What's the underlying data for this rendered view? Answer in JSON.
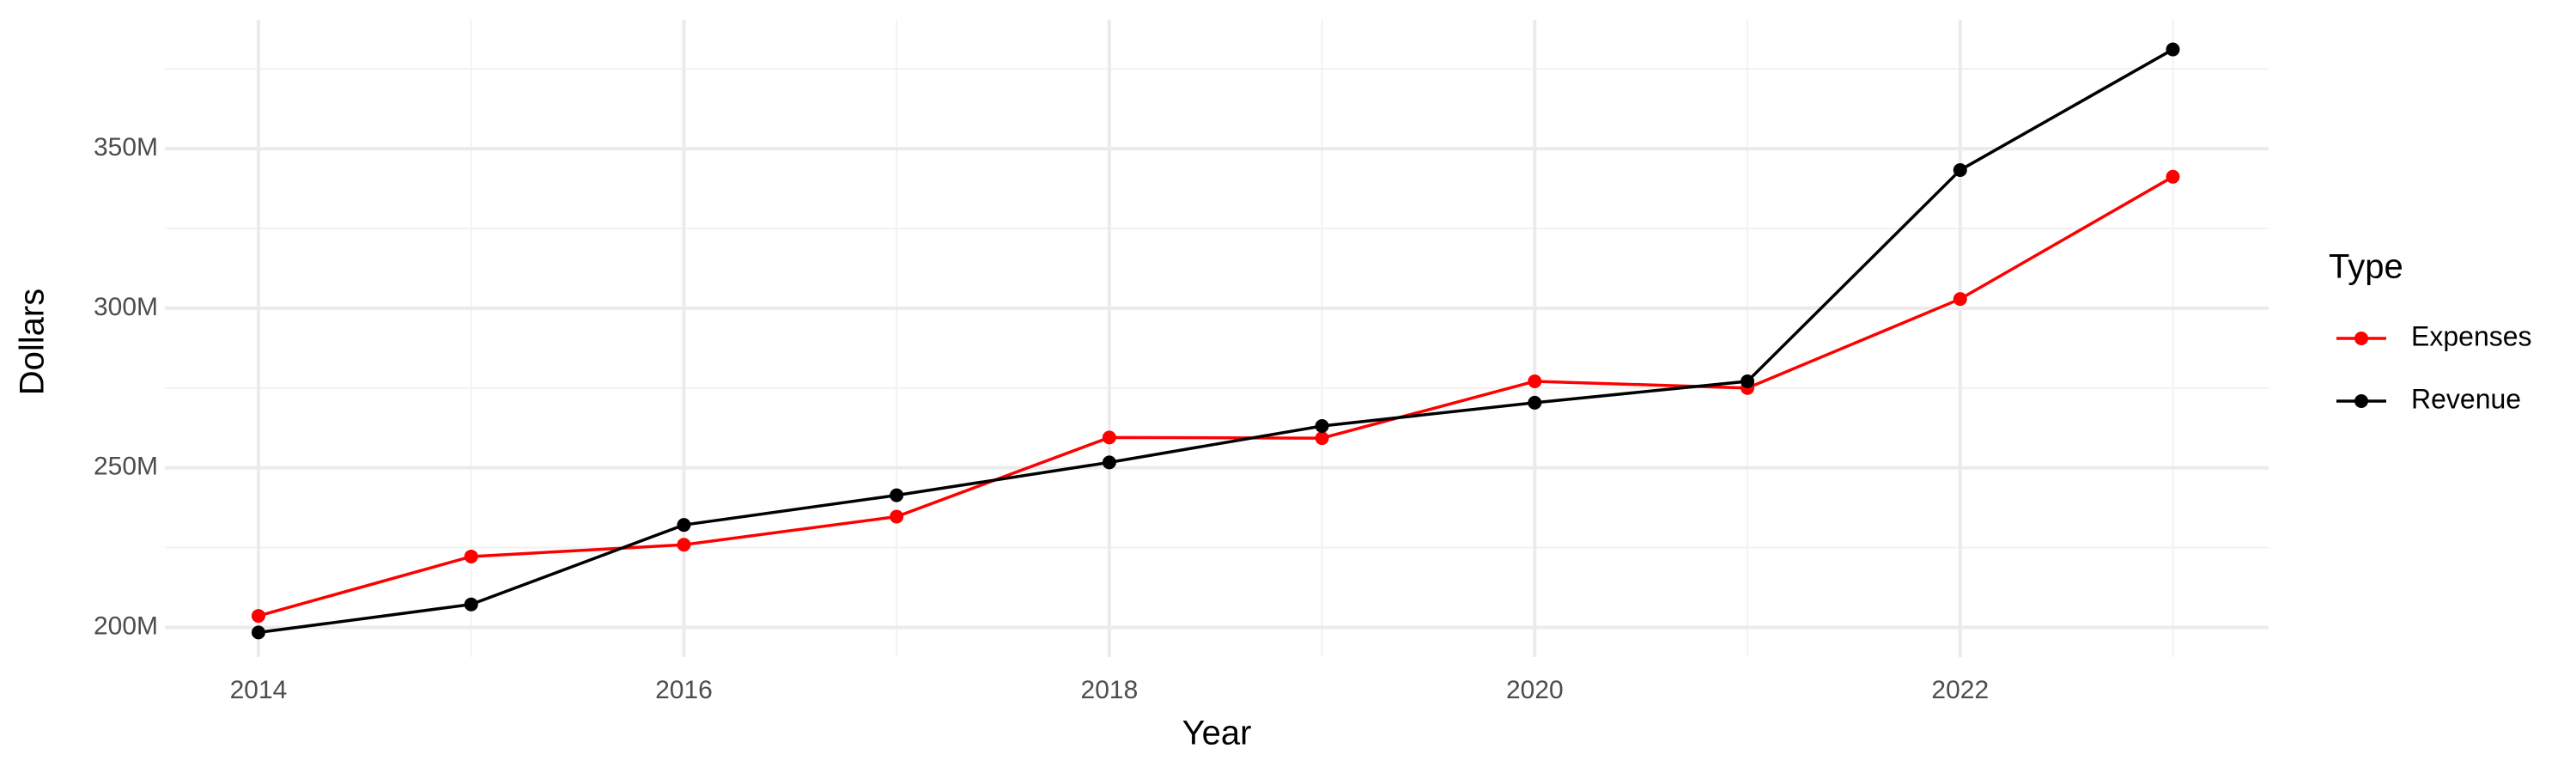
{
  "chart_data": {
    "type": "line",
    "x_label": "Year",
    "y_label": "Dollars",
    "legend_title": "Type",
    "x": [
      2014,
      2015,
      2016,
      2017,
      2018,
      2019,
      2020,
      2021,
      2022,
      2023
    ],
    "series": [
      {
        "name": "Expenses",
        "color": "#ff0000",
        "values": [
          203600000,
          222200000,
          225900000,
          234700000,
          259500000,
          259300000,
          277100000,
          275000000,
          302900000,
          341200000
        ]
      },
      {
        "name": "Revenue",
        "color": "#000000",
        "values": [
          198400000,
          207200000,
          232100000,
          241400000,
          251700000,
          263100000,
          270400000,
          277100000,
          343300000,
          381100000
        ]
      }
    ],
    "xlim": [
      2013.56,
      2023.45
    ],
    "ylim": [
      190700000,
      390400000
    ],
    "xticks": [
      2014,
      2016,
      2018,
      2020,
      2022
    ],
    "yticks": [
      {
        "value": 200000000,
        "label": "200M"
      },
      {
        "value": 250000000,
        "label": "250M"
      },
      {
        "value": 300000000,
        "label": "300M"
      },
      {
        "value": 350000000,
        "label": "350M"
      }
    ],
    "grid": true,
    "legend": "right"
  }
}
